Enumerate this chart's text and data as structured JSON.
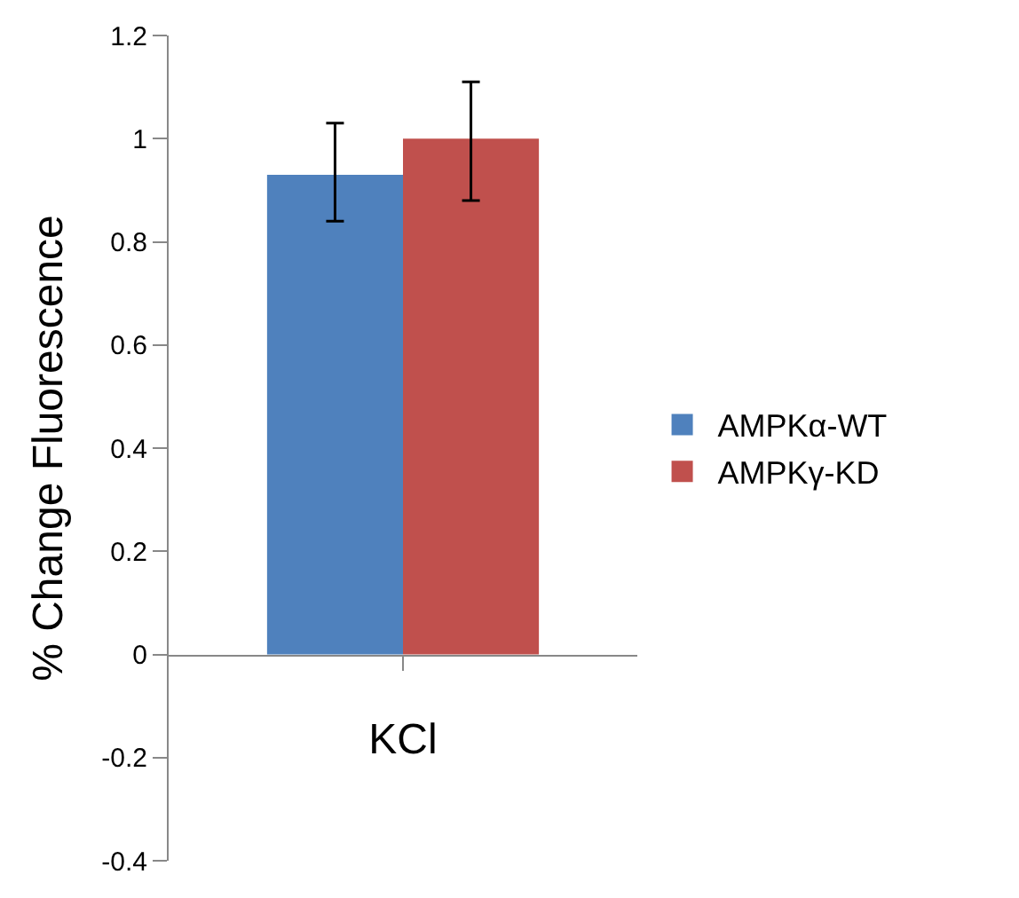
{
  "chart_data": {
    "type": "bar",
    "ylabel": "% Change Fluorescence",
    "categories": [
      "KCl"
    ],
    "series": [
      {
        "name": "AMPKα-WT",
        "color": "#4f81bd",
        "values": [
          0.93
        ],
        "errors": [
          [
            0.84,
            1.03
          ]
        ]
      },
      {
        "name": "AMPKγ-KD",
        "color": "#c0504d",
        "values": [
          1.0
        ],
        "errors": [
          [
            0.88,
            1.11
          ]
        ]
      }
    ],
    "ylim": [
      -0.4,
      1.2
    ],
    "yticks": [
      -0.4,
      -0.2,
      0,
      0.2,
      0.4,
      0.6,
      0.8,
      1,
      1.2
    ],
    "legend": "right"
  }
}
